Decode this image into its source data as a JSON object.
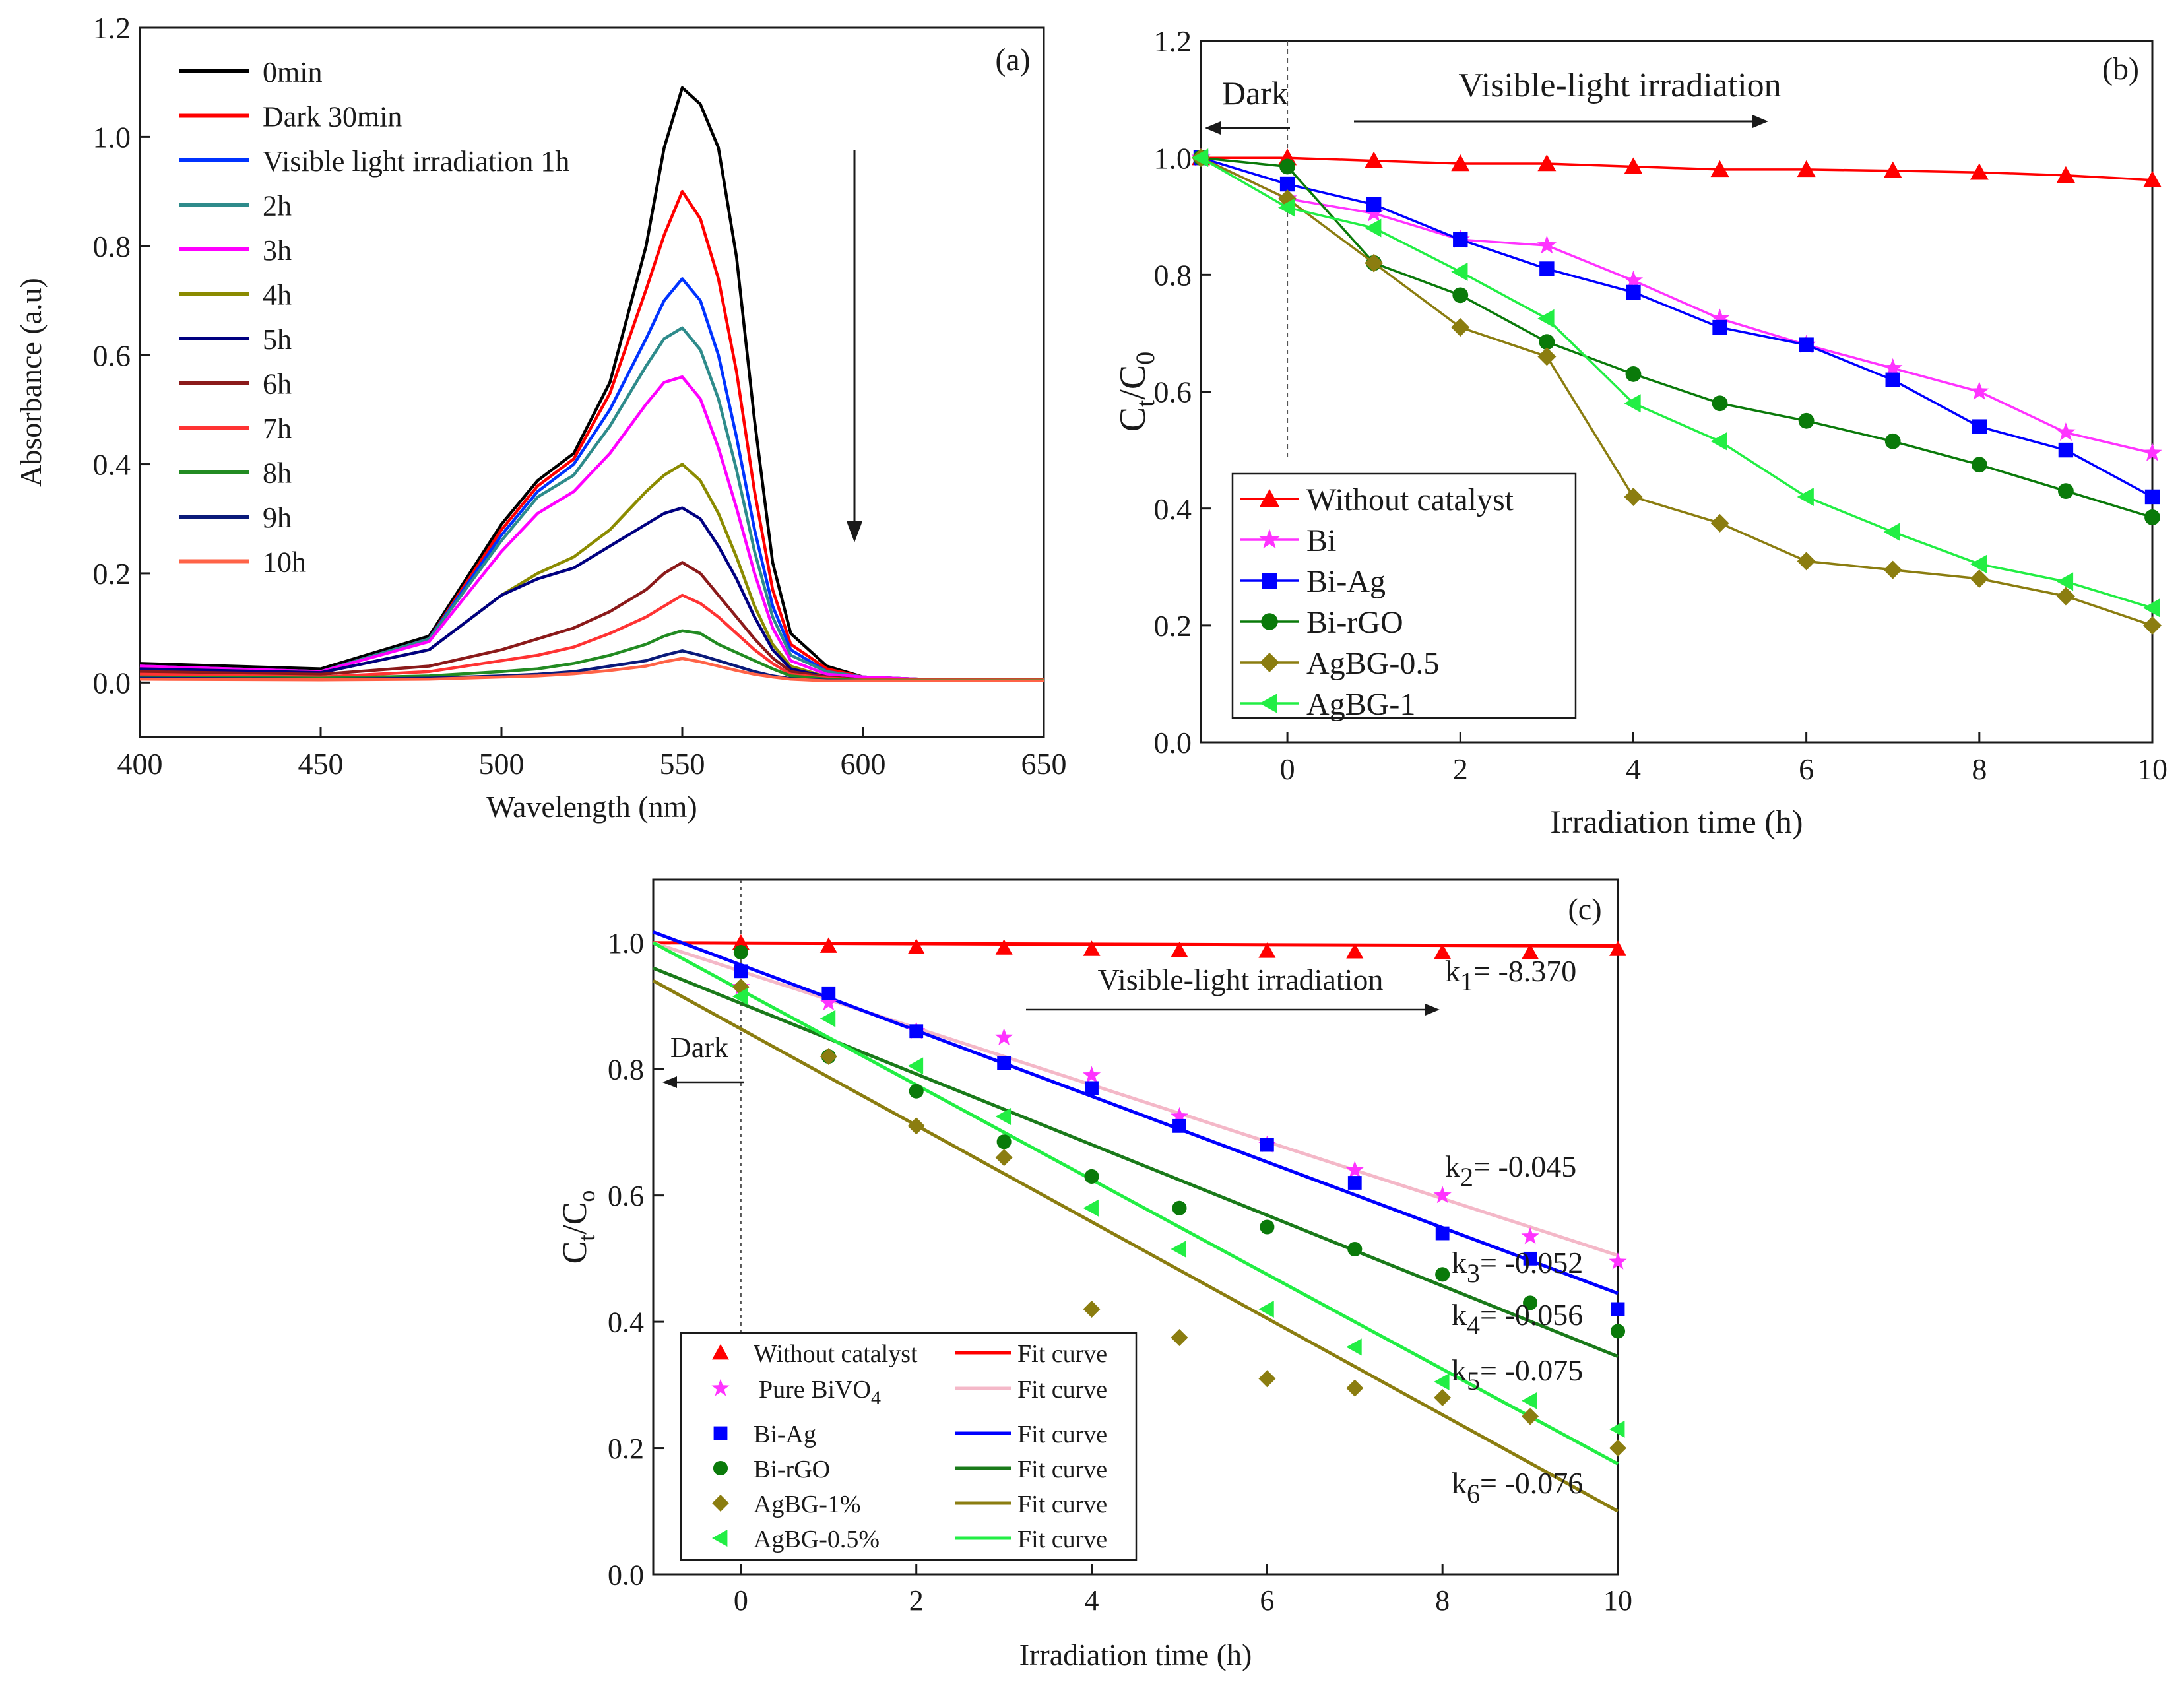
{
  "chart_data": [
    {
      "panel": "(a)",
      "type": "line",
      "xlabel": "Wavelength (nm)",
      "ylabel": "Absorbance (a.u)",
      "xlim": [
        400,
        650
      ],
      "ylim": [
        -0.1,
        1.2
      ],
      "xticks": [
        400,
        450,
        500,
        550,
        600,
        650
      ],
      "yticks": [
        0.0,
        0.2,
        0.4,
        0.6,
        0.8,
        1.0,
        1.2
      ],
      "x": [
        400,
        450,
        480,
        500,
        510,
        520,
        530,
        540,
        545,
        550,
        555,
        560,
        565,
        570,
        575,
        580,
        590,
        600,
        620,
        650
      ],
      "arrow_note": "downward arrow indicating decreasing absorbance with time",
      "series": [
        {
          "name": "0min",
          "color": "#000000",
          "values": [
            0.035,
            0.025,
            0.085,
            0.29,
            0.37,
            0.42,
            0.55,
            0.8,
            0.98,
            1.09,
            1.06,
            0.98,
            0.78,
            0.48,
            0.22,
            0.09,
            0.03,
            0.01,
            0.005,
            0.005
          ]
        },
        {
          "name": "Dark 30min",
          "color": "#ff0000",
          "values": [
            0.03,
            0.02,
            0.08,
            0.28,
            0.36,
            0.41,
            0.53,
            0.72,
            0.82,
            0.9,
            0.85,
            0.74,
            0.57,
            0.35,
            0.17,
            0.07,
            0.025,
            0.01,
            0.005,
            0.005
          ]
        },
        {
          "name": "Visible light irradiation 1h",
          "color": "#0033ff",
          "values": [
            0.03,
            0.02,
            0.08,
            0.27,
            0.35,
            0.4,
            0.5,
            0.63,
            0.7,
            0.74,
            0.7,
            0.6,
            0.45,
            0.28,
            0.14,
            0.06,
            0.02,
            0.01,
            0.005,
            0.005
          ]
        },
        {
          "name": "2h",
          "color": "#2e8b8b",
          "values": [
            0.03,
            0.02,
            0.08,
            0.26,
            0.34,
            0.38,
            0.47,
            0.58,
            0.63,
            0.65,
            0.61,
            0.52,
            0.39,
            0.24,
            0.12,
            0.05,
            0.02,
            0.01,
            0.005,
            0.005
          ]
        },
        {
          "name": "3h",
          "color": "#ff00ff",
          "values": [
            0.03,
            0.02,
            0.075,
            0.24,
            0.31,
            0.35,
            0.42,
            0.51,
            0.55,
            0.56,
            0.52,
            0.43,
            0.32,
            0.2,
            0.1,
            0.04,
            0.015,
            0.01,
            0.005,
            0.005
          ]
        },
        {
          "name": "4h",
          "color": "#8b8b00",
          "values": [
            0.025,
            0.018,
            0.06,
            0.16,
            0.2,
            0.23,
            0.28,
            0.35,
            0.38,
            0.4,
            0.37,
            0.31,
            0.23,
            0.14,
            0.07,
            0.03,
            0.01,
            0.005,
            0.005,
            0.005
          ]
        },
        {
          "name": "5h",
          "color": "#000080",
          "values": [
            0.025,
            0.018,
            0.06,
            0.16,
            0.19,
            0.21,
            0.25,
            0.29,
            0.31,
            0.32,
            0.3,
            0.25,
            0.19,
            0.12,
            0.06,
            0.025,
            0.01,
            0.005,
            0.005,
            0.005
          ]
        },
        {
          "name": "6h",
          "color": "#8b1a1a",
          "values": [
            0.02,
            0.015,
            0.03,
            0.06,
            0.08,
            0.1,
            0.13,
            0.17,
            0.2,
            0.22,
            0.2,
            0.16,
            0.12,
            0.08,
            0.045,
            0.02,
            0.01,
            0.005,
            0.005,
            0.005
          ]
        },
        {
          "name": "7h",
          "color": "#ff3333",
          "values": [
            0.015,
            0.01,
            0.02,
            0.04,
            0.05,
            0.065,
            0.09,
            0.12,
            0.14,
            0.16,
            0.145,
            0.12,
            0.09,
            0.06,
            0.035,
            0.015,
            0.008,
            0.005,
            0.005,
            0.005
          ]
        },
        {
          "name": "8h",
          "color": "#228b22",
          "values": [
            0.01,
            0.008,
            0.012,
            0.02,
            0.025,
            0.035,
            0.05,
            0.07,
            0.085,
            0.095,
            0.09,
            0.07,
            0.055,
            0.04,
            0.025,
            0.012,
            0.006,
            0.004,
            0.004,
            0.004
          ]
        },
        {
          "name": "9h",
          "color": "#0a1a7a",
          "values": [
            0.008,
            0.006,
            0.008,
            0.012,
            0.015,
            0.02,
            0.03,
            0.04,
            0.05,
            0.058,
            0.05,
            0.04,
            0.03,
            0.02,
            0.012,
            0.007,
            0.004,
            0.003,
            0.003,
            0.003
          ]
        },
        {
          "name": "10h",
          "color": "#ff6347",
          "values": [
            0.006,
            0.005,
            0.006,
            0.01,
            0.012,
            0.016,
            0.022,
            0.03,
            0.038,
            0.044,
            0.038,
            0.03,
            0.022,
            0.015,
            0.01,
            0.006,
            0.003,
            0.003,
            0.003,
            0.003
          ]
        }
      ]
    },
    {
      "panel": "(b)",
      "type": "line",
      "xlabel": "Irradiation time (h)",
      "ylabel_main": "C",
      "ylabel_sub1": "t",
      "ylabel_mid": "/C",
      "ylabel_sub2": "0",
      "xlim": [
        -1,
        10
      ],
      "ylim": [
        0.0,
        1.2
      ],
      "xticks": [
        0,
        2,
        4,
        6,
        8,
        10
      ],
      "yticks": [
        0.0,
        0.2,
        0.4,
        0.6,
        0.8,
        1.0,
        1.2
      ],
      "annotations": {
        "dark": "Dark",
        "visible": "Visible-light irradiation"
      },
      "x": [
        -1,
        0,
        1,
        2,
        3,
        4,
        5,
        6,
        7,
        8,
        9,
        10
      ],
      "series": [
        {
          "name": "Without catalyst",
          "color": "#ff0000",
          "marker": "triangle-up",
          "values": [
            1.0,
            1.0,
            0.995,
            0.99,
            0.99,
            0.985,
            0.98,
            0.98,
            0.978,
            0.975,
            0.97,
            0.962
          ]
        },
        {
          "name": "Bi",
          "color": "#ff33ff",
          "marker": "star",
          "values": [
            1.0,
            0.93,
            0.905,
            0.86,
            0.85,
            0.79,
            0.725,
            0.68,
            0.64,
            0.6,
            0.53,
            0.495
          ]
        },
        {
          "name": "Bi-Ag",
          "color": "#0000ff",
          "marker": "square",
          "values": [
            1.0,
            0.955,
            0.92,
            0.86,
            0.81,
            0.77,
            0.71,
            0.68,
            0.62,
            0.54,
            0.5,
            0.42
          ]
        },
        {
          "name": "Bi-rGO",
          "color": "#0a7a0a",
          "marker": "circle",
          "values": [
            1.0,
            0.985,
            0.82,
            0.765,
            0.685,
            0.63,
            0.58,
            0.55,
            0.515,
            0.475,
            0.43,
            0.385
          ]
        },
        {
          "name": "AgBG-0.5",
          "color": "#8b7d10",
          "marker": "diamond",
          "values": [
            1.0,
            0.93,
            0.82,
            0.71,
            0.66,
            0.42,
            0.375,
            0.31,
            0.295,
            0.28,
            0.25,
            0.2
          ]
        },
        {
          "name": "AgBG-1",
          "color": "#22ee44",
          "marker": "triangle-left",
          "values": [
            1.0,
            0.915,
            0.88,
            0.805,
            0.725,
            0.58,
            0.515,
            0.42,
            0.36,
            0.305,
            0.275,
            0.23
          ]
        }
      ]
    },
    {
      "panel": "(c)",
      "type": "scatter",
      "xlabel": "Irradiation time (h)",
      "ylabel_main": "C",
      "ylabel_sub1": "t",
      "ylabel_mid": "/C",
      "ylabel_sub2": "o",
      "xlim": [
        -1,
        10
      ],
      "ylim": [
        0.0,
        1.1
      ],
      "xticks": [
        0,
        2,
        4,
        6,
        8,
        10
      ],
      "yticks": [
        0.0,
        0.2,
        0.4,
        0.6,
        0.8,
        1.0
      ],
      "annotations": {
        "dark": "Dark",
        "visible": "Visible-light irradiation"
      },
      "x": [
        0,
        1,
        2,
        3,
        4,
        5,
        6,
        7,
        8,
        9,
        10
      ],
      "fit_label": "Fit curve",
      "series": [
        {
          "name": "Without catalyst",
          "color": "#ff0000",
          "fit_color": "#ff0000",
          "marker": "triangle-up",
          "k_main": "k",
          "k_sub": "1",
          "k_rest": "= -8.370",
          "fit": [
            1.0,
            0.995
          ],
          "values": [
            1.0,
            0.995,
            0.993,
            0.992,
            0.99,
            0.988,
            0.987,
            0.986,
            0.985,
            0.985,
            0.99
          ]
        },
        {
          "name_main": "Pure BiVO",
          "name_sub": "4",
          "color": "#ff33ff",
          "fit_color": "#f4b8c8",
          "marker": "star",
          "k_main": "k",
          "k_sub": "2",
          "k_rest": "= -0.045",
          "fit": [
            1.0,
            0.505
          ],
          "values": [
            0.93,
            0.905,
            0.86,
            0.85,
            0.79,
            0.725,
            0.68,
            0.64,
            0.6,
            0.535,
            0.495
          ]
        },
        {
          "name": "Bi-Ag",
          "color": "#0000ff",
          "fit_color": "#0000ff",
          "marker": "square",
          "k_main": "k",
          "k_sub": "3",
          "k_rest": "= -0.052",
          "fit": [
            1.017,
            0.445
          ],
          "values": [
            0.955,
            0.92,
            0.86,
            0.81,
            0.77,
            0.71,
            0.68,
            0.62,
            0.54,
            0.5,
            0.42
          ]
        },
        {
          "name": "Bi-rGO",
          "color": "#0a7a0a",
          "fit_color": "#1a7a1a",
          "marker": "circle",
          "k_main": "k",
          "k_sub": "4",
          "k_rest": "= -0.056",
          "fit": [
            0.96,
            0.345
          ],
          "values": [
            0.985,
            0.82,
            0.765,
            0.685,
            0.63,
            0.58,
            0.55,
            0.515,
            0.475,
            0.43,
            0.385
          ]
        },
        {
          "name": "AgBG-1%",
          "color": "#8b7d10",
          "fit_color": "#8b7d10",
          "marker": "diamond",
          "k_main": "k",
          "k_sub": "6",
          "k_rest": "= -0.076",
          "fit": [
            0.94,
            0.1
          ],
          "values": [
            0.93,
            0.82,
            0.71,
            0.66,
            0.42,
            0.375,
            0.31,
            0.295,
            0.28,
            0.25,
            0.2
          ]
        },
        {
          "name": "AgBG-0.5%",
          "color": "#22ee44",
          "fit_color": "#22ee44",
          "marker": "triangle-left",
          "k_main": "k",
          "k_sub": "5",
          "k_rest": "= -0.075",
          "fit": [
            1.0,
            0.175
          ],
          "values": [
            0.915,
            0.88,
            0.805,
            0.725,
            0.58,
            0.515,
            0.42,
            0.36,
            0.305,
            0.275,
            0.23
          ]
        }
      ]
    }
  ]
}
